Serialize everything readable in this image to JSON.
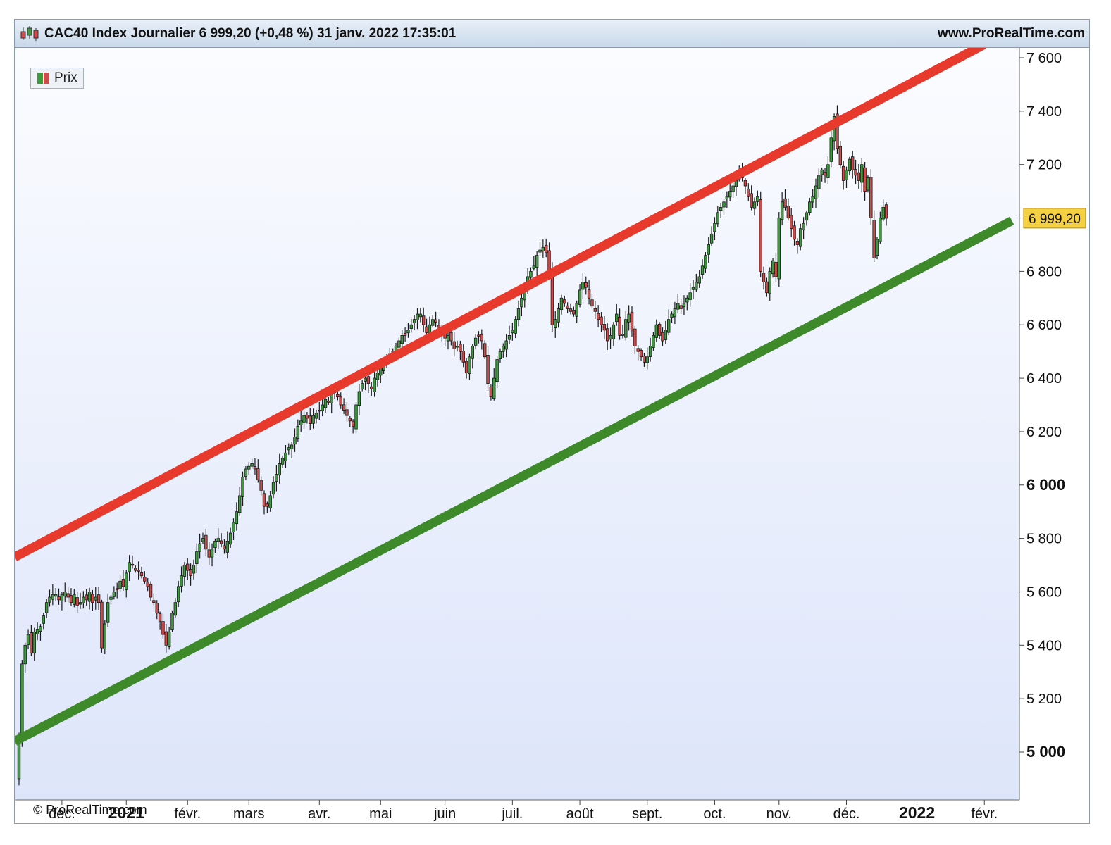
{
  "header": {
    "title": "CAC40 Index Journalier 6 999,20 (+0,48 %) 31 janv. 2022 17:35:01",
    "site": "www.ProRealTime.com"
  },
  "legend": {
    "label": "Prix",
    "icon": "candlestick-icon"
  },
  "copyright": "© ProRealTime.com",
  "price_badge": {
    "label": "6 999,20",
    "value": 6999.2,
    "color": "#f5d142"
  },
  "colors": {
    "up": "#3f9a3f",
    "down": "#d24a4a",
    "resistance": "#e83a2c",
    "support": "#3e8a2a",
    "bg_top": "#fbfcff",
    "bg_bottom": "#dde5fa"
  },
  "chart_data": {
    "type": "candlestick",
    "title": "CAC40 Index Journalier",
    "ylim": [
      4800,
      7630
    ],
    "grid": false,
    "y_ticks": [
      {
        "value": 5000,
        "label": "5 000",
        "bold": true
      },
      {
        "value": 5200,
        "label": "5 200",
        "bold": false
      },
      {
        "value": 5400,
        "label": "5 400",
        "bold": false
      },
      {
        "value": 5600,
        "label": "5 600",
        "bold": false
      },
      {
        "value": 5800,
        "label": "5 800",
        "bold": false
      },
      {
        "value": 6000,
        "label": "6 000",
        "bold": true
      },
      {
        "value": 6200,
        "label": "6 200",
        "bold": false
      },
      {
        "value": 6400,
        "label": "6 400",
        "bold": false
      },
      {
        "value": 6600,
        "label": "6 600",
        "bold": false
      },
      {
        "value": 6800,
        "label": "6 800",
        "bold": false
      },
      {
        "value": 7000,
        "label": "",
        "bold": false
      },
      {
        "value": 7200,
        "label": "7 200",
        "bold": false
      },
      {
        "value": 7400,
        "label": "7 400",
        "bold": false
      },
      {
        "value": 7600,
        "label": "7 600",
        "bold": false
      }
    ],
    "x_ticks": [
      {
        "index": 14,
        "label": "déc.",
        "bold": false
      },
      {
        "index": 35,
        "label": "2021",
        "bold": true
      },
      {
        "index": 55,
        "label": "févr.",
        "bold": false
      },
      {
        "index": 75,
        "label": "mars",
        "bold": false
      },
      {
        "index": 98,
        "label": "avr.",
        "bold": false
      },
      {
        "index": 118,
        "label": "mai",
        "bold": false
      },
      {
        "index": 139,
        "label": "juin",
        "bold": false
      },
      {
        "index": 161,
        "label": "juil.",
        "bold": false
      },
      {
        "index": 183,
        "label": "août",
        "bold": false
      },
      {
        "index": 205,
        "label": "sept.",
        "bold": false
      },
      {
        "index": 227,
        "label": "oct.",
        "bold": false
      },
      {
        "index": 248,
        "label": "nov.",
        "bold": false
      },
      {
        "index": 270,
        "label": "déc.",
        "bold": false
      },
      {
        "index": 293,
        "label": "2022",
        "bold": true
      },
      {
        "index": 315,
        "label": "févr.",
        "bold": false
      }
    ],
    "trendlines": [
      {
        "name": "resistance",
        "from": {
          "index": 0,
          "value": 5730
        },
        "to": {
          "index": 315,
          "value": 7650
        }
      },
      {
        "name": "support",
        "from": {
          "index": 0,
          "value": 5040
        },
        "to": {
          "index": 324,
          "value": 6990
        }
      }
    ],
    "close_series": [
      5050,
      5330,
      5400,
      5440,
      5370,
      5450,
      5460,
      5470,
      5510,
      5560,
      5580,
      5590,
      5590,
      5570,
      5590,
      5600,
      5580,
      5560,
      5590,
      5550,
      5560,
      5580,
      5570,
      5600,
      5560,
      5580,
      5560,
      5390,
      5480,
      5560,
      5580,
      5600,
      5610,
      5640,
      5620,
      5670,
      5710,
      5700,
      5680,
      5680,
      5660,
      5640,
      5620,
      5580,
      5560,
      5520,
      5490,
      5440,
      5400,
      5450,
      5520,
      5560,
      5620,
      5660,
      5700,
      5680,
      5660,
      5700,
      5750,
      5780,
      5800,
      5760,
      5730,
      5760,
      5790,
      5800,
      5780,
      5760,
      5790,
      5820,
      5860,
      5900,
      5960,
      6030,
      6060,
      6070,
      6080,
      6060,
      6020,
      5980,
      5920,
      5920,
      5960,
      6010,
      6040,
      6080,
      6100,
      6120,
      6140,
      6150,
      6180,
      6220,
      6240,
      6260,
      6250,
      6230,
      6260,
      6270,
      6280,
      6300,
      6320,
      6310,
      6340,
      6350,
      6330,
      6300,
      6280,
      6260,
      6240,
      6220,
      6300,
      6350,
      6380,
      6400,
      6380,
      6360,
      6400,
      6420,
      6440,
      6460,
      6480,
      6490,
      6500,
      6520,
      6540,
      6560,
      6560,
      6580,
      6600,
      6620,
      6640,
      6640,
      6600,
      6570,
      6600,
      6620,
      6610,
      6590,
      6570,
      6550,
      6560,
      6540,
      6510,
      6520,
      6500,
      6460,
      6420,
      6480,
      6520,
      6550,
      6560,
      6540,
      6480,
      6380,
      6330,
      6400,
      6470,
      6500,
      6520,
      6540,
      6560,
      6580,
      6620,
      6660,
      6700,
      6740,
      6780,
      6800,
      6820,
      6860,
      6880,
      6890,
      6870,
      6800,
      6600,
      6620,
      6660,
      6700,
      6680,
      6660,
      6650,
      6640,
      6680,
      6730,
      6760,
      6740,
      6700,
      6670,
      6650,
      6620,
      6600,
      6580,
      6540,
      6560,
      6600,
      6640,
      6560,
      6560,
      6620,
      6640,
      6580,
      6520,
      6500,
      6480,
      6460,
      6480,
      6520,
      6560,
      6600,
      6560,
      6540,
      6580,
      6620,
      6640,
      6660,
      6680,
      6660,
      6680,
      6700,
      6720,
      6740,
      6760,
      6780,
      6820,
      6860,
      6900,
      6940,
      6980,
      7020,
      7040,
      7060,
      7080,
      7100,
      7120,
      7140,
      7160,
      7150,
      7120,
      7080,
      7040,
      7060,
      7080,
      6800,
      6760,
      6720,
      6800,
      6840,
      6780,
      7000,
      7060,
      7040,
      7000,
      6960,
      6920,
      6900,
      6960,
      6980,
      7020,
      7060,
      7080,
      7120,
      7160,
      7180,
      7160,
      7200,
      7300,
      7380,
      7260,
      7200,
      7140,
      7180,
      7220,
      7180,
      7160,
      7140,
      7200,
      7100,
      7150,
      7000,
      6850,
      6920,
      7000,
      7040,
      6999
    ]
  }
}
